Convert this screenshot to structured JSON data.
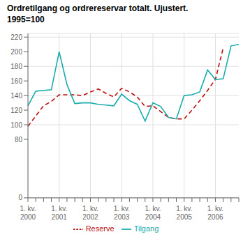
{
  "chart_data": {
    "type": "line",
    "title": "Ordretilgang og ordrereservar totalt. Ujustert.",
    "subtitle": "1995=100",
    "categories": [
      "1. kv.\n2000",
      null,
      null,
      null,
      "1. kv.\n2001",
      null,
      null,
      null,
      "1. kv.\n2002",
      null,
      null,
      null,
      "1. kv.\n2003",
      null,
      null,
      null,
      "1. kv.\n2004",
      null,
      null,
      null,
      "1. kv.\n2005",
      null,
      null,
      null,
      "1. kv.\n2006",
      null,
      null,
      null
    ],
    "series": [
      {
        "name": "Reserve",
        "color": "#bb1111",
        "line_style": "dashed",
        "values": [
          98,
          112,
          126,
          132,
          141,
          141,
          141,
          140,
          145,
          149,
          143,
          138,
          150,
          145,
          138,
          125,
          126,
          118,
          110,
          108,
          108,
          120,
          133,
          147,
          162,
          205,
          null,
          null
        ]
      },
      {
        "name": "Tilgang",
        "color": "#1aadad",
        "line_style": "solid",
        "values": [
          126,
          146,
          147,
          148,
          200,
          155,
          129,
          130,
          130,
          128,
          127,
          126,
          142,
          133,
          128,
          105,
          130,
          125,
          110,
          108,
          140,
          141,
          145,
          175,
          162,
          163,
          208,
          210
        ]
      }
    ],
    "ylim": [
      0,
      225
    ],
    "yticks": [
      0,
      80,
      100,
      120,
      140,
      160,
      180,
      200,
      220
    ],
    "grid": true
  }
}
